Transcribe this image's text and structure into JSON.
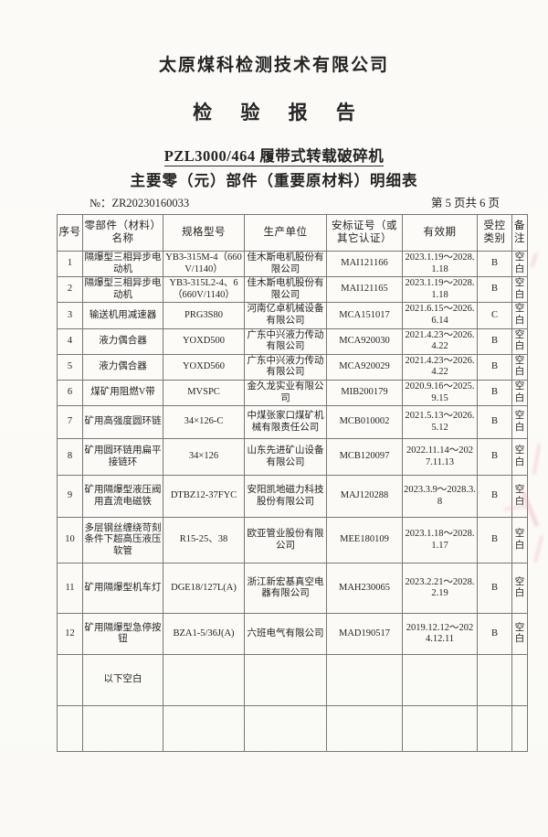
{
  "document": {
    "company": "太原煤科检测技术有限公司",
    "report_title": "检 验 报 告",
    "product_title": "PZL3000/464 履带式转载破碎机",
    "table_title": "主要零（元）部件（重要原材料）明细表",
    "report_no_label": "№：",
    "report_no": "ZR20230160033",
    "page_info": "第 5 页共 6 页"
  },
  "table": {
    "headers": [
      "序号",
      "零部件（材料）名称",
      "规格型号",
      "生产单位",
      "安标证号（或其它认证）",
      "有效期",
      "受控类别",
      "备注"
    ],
    "rows": [
      [
        "1",
        "隔爆型三相异步电动机",
        "YB3-315M-4（660V/1140）",
        "佳木斯电机股份有限公司",
        "MAI121166",
        "2023.1.19～2028.1.18",
        "B",
        "空白"
      ],
      [
        "2",
        "隔爆型三相异步电动机",
        "YB3-315L2-4、6（660V/1140）",
        "佳木斯电机股份有限公司",
        "MAI121165",
        "2023.1.19～2028.1.18",
        "B",
        "空白"
      ],
      [
        "3",
        "输送机用减速器",
        "PRG3S80",
        "河南亿卓机械设备有限公司",
        "MCA151017",
        "2021.6.15～2026.6.14",
        "C",
        "空白"
      ],
      [
        "4",
        "液力偶合器",
        "YOXD500",
        "广东中兴液力传动有限公司",
        "MCA920030",
        "2021.4.23～2026.4.22",
        "B",
        "空白"
      ],
      [
        "5",
        "液力偶合器",
        "YOXD560",
        "广东中兴液力传动有限公司",
        "MCA920029",
        "2021.4.23～2026.4.22",
        "B",
        "空白"
      ],
      [
        "6",
        "煤矿用阻燃V带",
        "MVSPC",
        "金久龙实业有限公司",
        "MIB200179",
        "2020.9.16～2025.9.15",
        "B",
        "空白"
      ],
      [
        "7",
        "矿用高强度圆环链",
        "34×126-C",
        "中煤张家口煤矿机械有限责任公司",
        "MCB010002",
        "2021.5.13～2026.5.12",
        "B",
        "空白"
      ],
      [
        "8",
        "矿用圆环链用扁平接链环",
        "34×126",
        "山东先进矿山设备有限公司",
        "MCB120097",
        "2022.11.14～2027.11.13",
        "B",
        "空白"
      ],
      [
        "9",
        "矿用隔爆型液压阀用直流电磁铁",
        "DTBZ12-37FYC",
        "安阳凯地磁力科技股份有限公司",
        "MAJ120288",
        "2023.3.9～2028.3.8",
        "B",
        "空白"
      ],
      [
        "10",
        "多层钢丝缠绕苛刻条件下超高压液压软管",
        "R15-25、38",
        "欧亚管业股份有限公司",
        "MEE180109",
        "2023.1.18～2028.1.17",
        "B",
        "空白"
      ],
      [
        "11",
        "矿用隔爆型机车灯",
        "DGE18/127L(A)",
        "浙江新宏基真空电器有限公司",
        "MAH230065",
        "2023.2.21～2028.2.19",
        "B",
        "空白"
      ],
      [
        "12",
        "矿用隔爆型急停按钮",
        "BZA1-5/36J(A)",
        "六班电气有限公司",
        "MAD190517",
        "2019.12.12～2024.12.11",
        "B",
        "空白"
      ]
    ],
    "footer_rows": [
      [
        "",
        "以下空白",
        "",
        "",
        "",
        "",
        "",
        ""
      ],
      [
        "",
        "",
        "",
        "",
        "",
        "",
        "",
        ""
      ]
    ]
  }
}
